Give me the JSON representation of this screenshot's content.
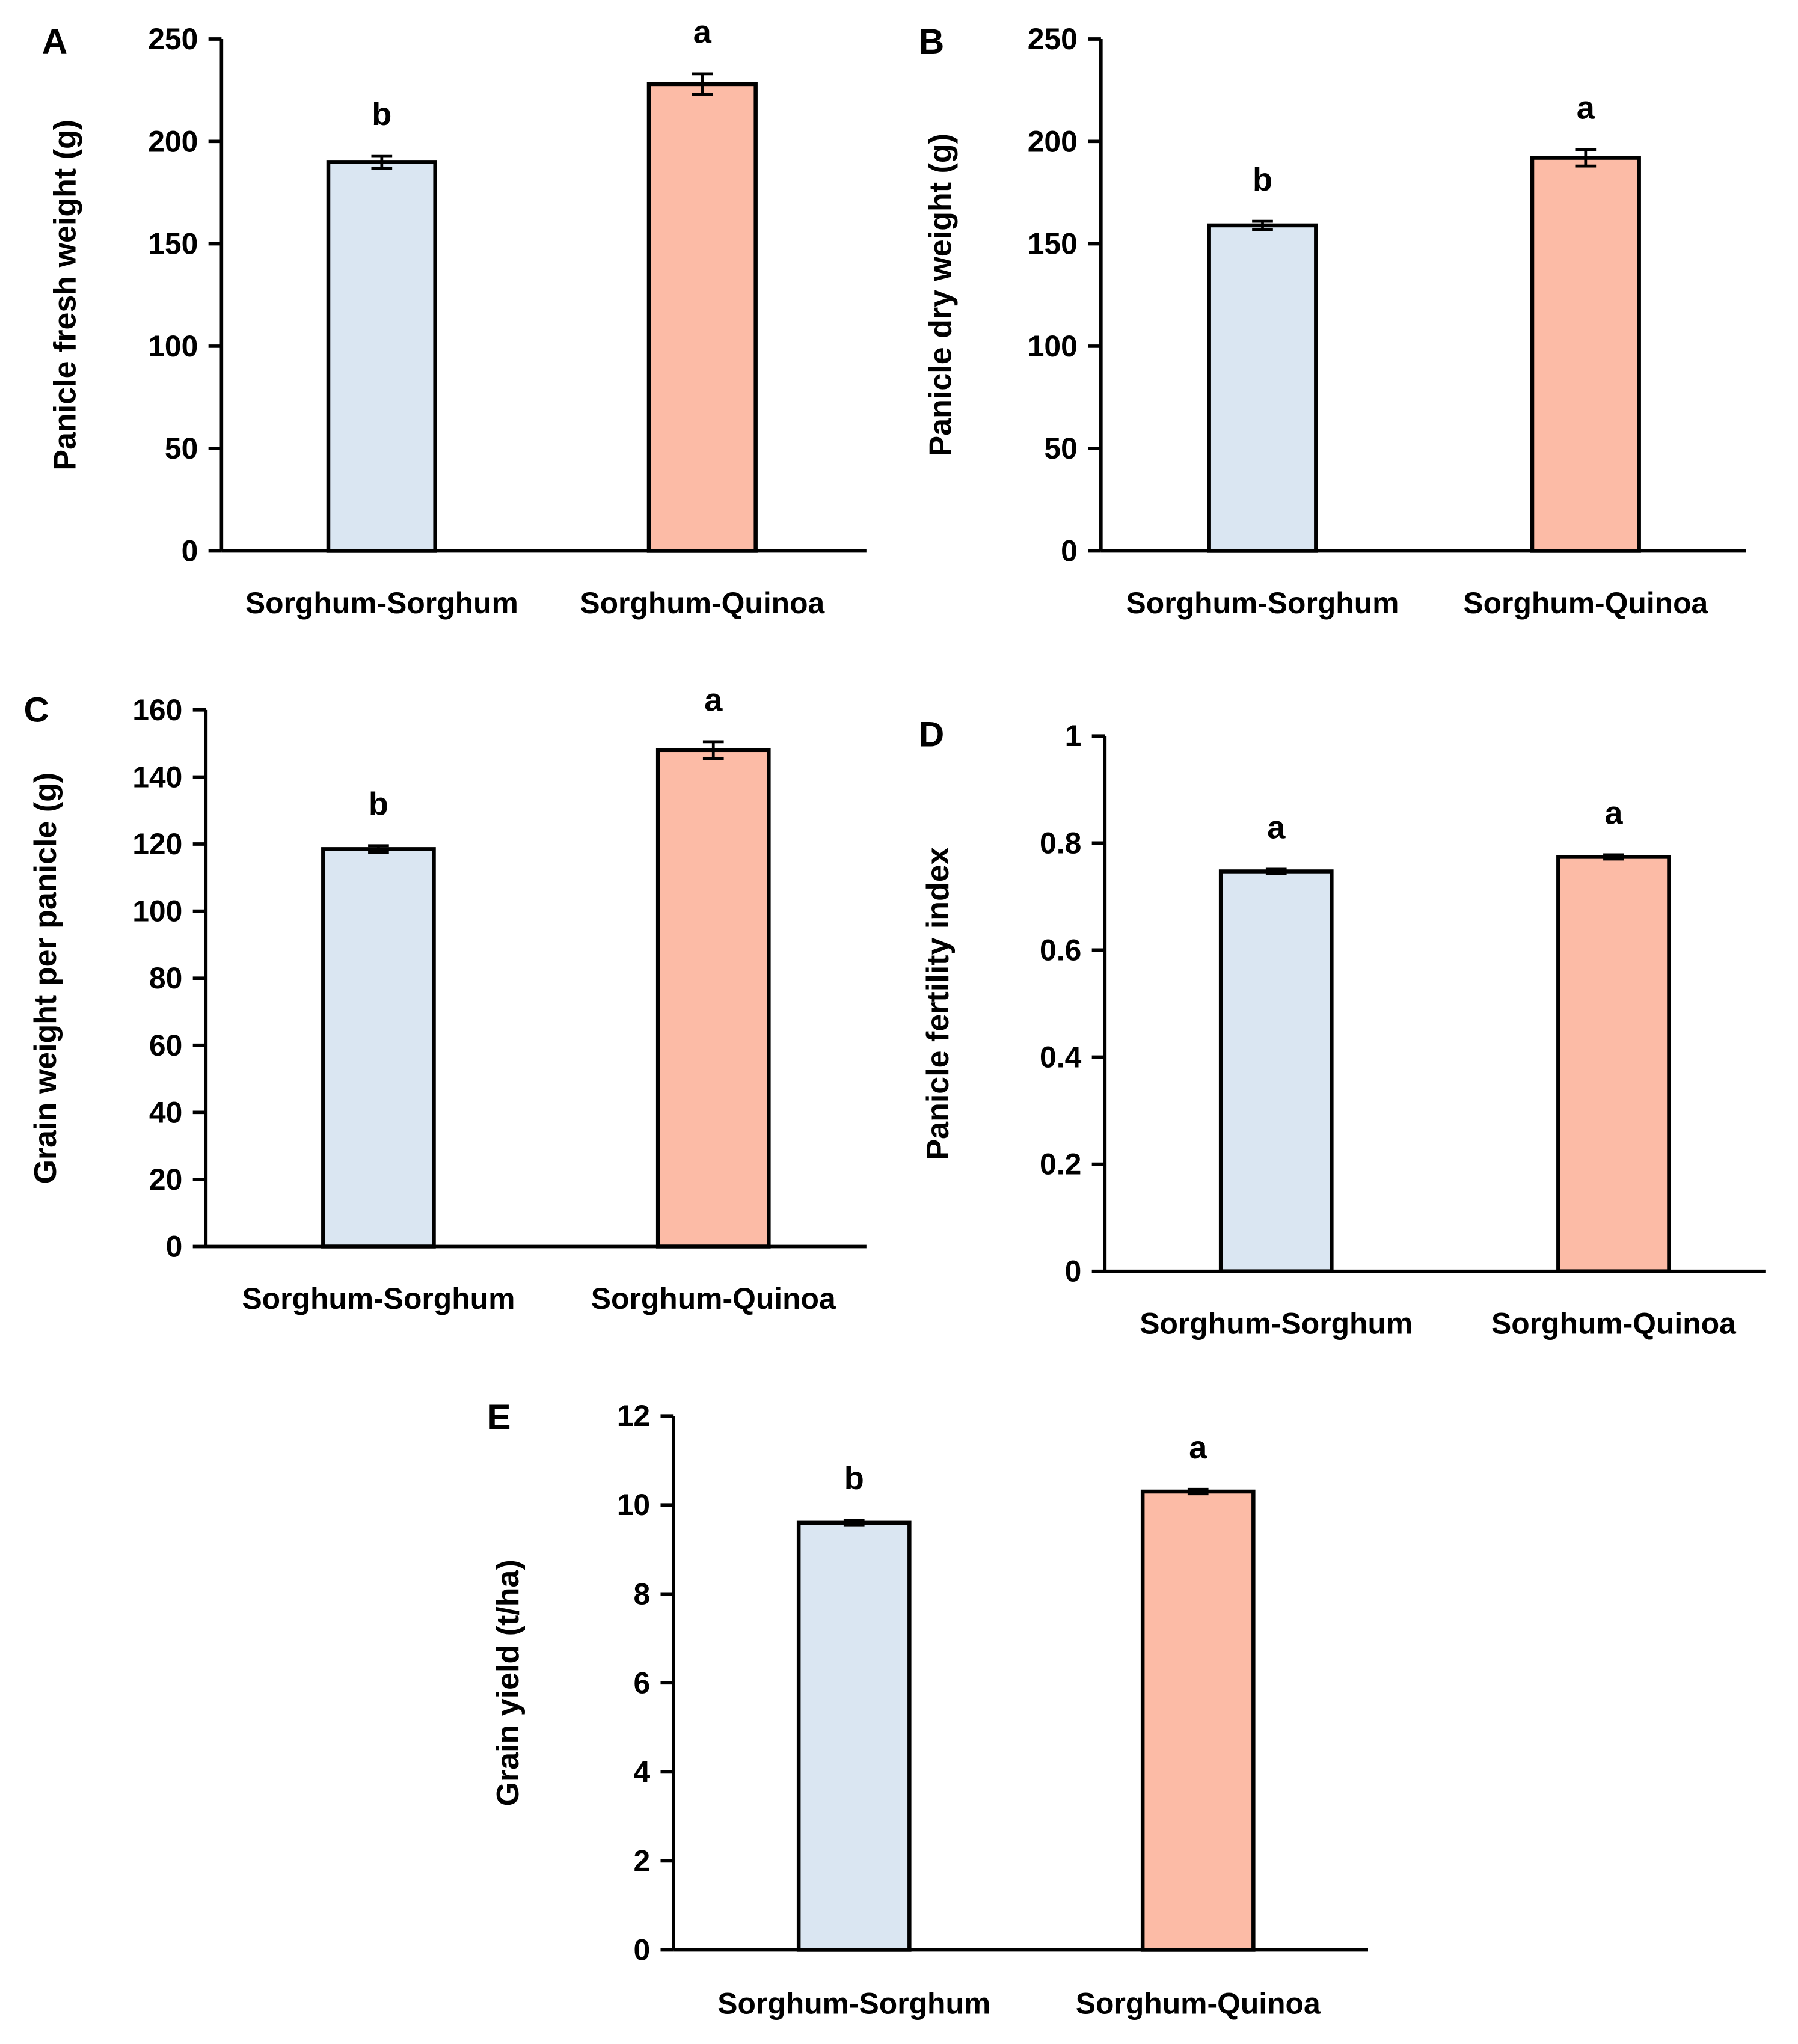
{
  "chart_data": [
    {
      "panel_label": "A",
      "type": "bar",
      "categories": [
        "Sorghum-Sorghum",
        "Sorghum-Quinoa"
      ],
      "values": [
        190,
        228
      ],
      "errors": [
        3,
        5
      ],
      "letters": [
        "b",
        "a"
      ],
      "ylabel": "Panicle fresh weight (g)",
      "ylim": [
        0,
        250
      ],
      "yticks": [
        "0",
        "50",
        "100",
        "150",
        "200",
        "250"
      ]
    },
    {
      "panel_label": "B",
      "type": "bar",
      "categories": [
        "Sorghum-Sorghum",
        "Sorghum-Quinoa"
      ],
      "values": [
        159,
        192
      ],
      "errors": [
        2,
        4
      ],
      "letters": [
        "b",
        "a"
      ],
      "ylabel": "Panicle dry weight (g)",
      "ylim": [
        0,
        250
      ],
      "yticks": [
        "0",
        "50",
        "100",
        "150",
        "200",
        "250"
      ]
    },
    {
      "panel_label": "C",
      "type": "bar",
      "categories": [
        "Sorghum-Sorghum",
        "Sorghum-Quinoa"
      ],
      "values": [
        118.5,
        148
      ],
      "errors": [
        1,
        2.5
      ],
      "letters": [
        "b",
        "a"
      ],
      "ylabel": "Grain weight per panicle (g)",
      "ylim": [
        0,
        160
      ],
      "yticks": [
        "0",
        "20",
        "40",
        "60",
        "80",
        "100",
        "120",
        "140",
        "160"
      ]
    },
    {
      "panel_label": "D",
      "type": "bar",
      "categories": [
        "Sorghum-Sorghum",
        "Sorghum-Quinoa"
      ],
      "values": [
        0.747,
        0.774
      ],
      "errors": [
        0.004,
        0.004
      ],
      "letters": [
        "a",
        "a"
      ],
      "ylabel": "Panicle fertility index",
      "ylim": [
        0,
        1
      ],
      "yticks": [
        "0",
        "0.2",
        "0.4",
        "0.6",
        "0.8",
        "1"
      ]
    },
    {
      "panel_label": "E",
      "type": "bar",
      "categories": [
        "Sorghum-Sorghum",
        "Sorghum-Quinoa"
      ],
      "values": [
        9.6,
        10.3
      ],
      "errors": [
        0.06,
        0.05
      ],
      "letters": [
        "b",
        "a"
      ],
      "ylabel": "Grain yield (t/ha)",
      "ylim": [
        0,
        12
      ],
      "yticks": [
        "0",
        "2",
        "4",
        "6",
        "8",
        "10",
        "12"
      ]
    }
  ],
  "colors": {
    "sorghum_sorghum": "#dae6f2",
    "sorghum_quinoa": "#fcbba6",
    "axis": "#000000"
  }
}
